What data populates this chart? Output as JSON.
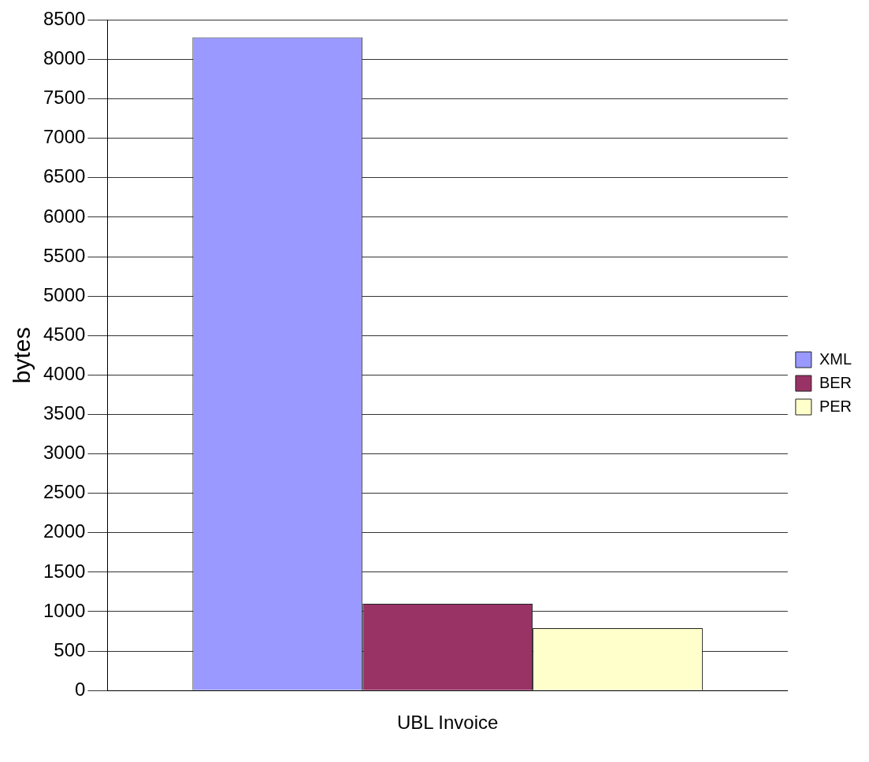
{
  "chart_data": {
    "type": "bar",
    "ylabel": "bytes",
    "categories": [
      "UBL Invoice"
    ],
    "series": [
      {
        "name": "XML",
        "color": "#9999ff",
        "values": [
          8280
        ]
      },
      {
        "name": "BER",
        "color": "#993366",
        "values": [
          1100
        ]
      },
      {
        "name": "PER",
        "color": "#ffffcc",
        "values": [
          790
        ]
      }
    ],
    "ylim": [
      0,
      8500
    ],
    "yticks": [
      0,
      500,
      1000,
      1500,
      2000,
      2500,
      3000,
      3500,
      4000,
      4500,
      5000,
      5500,
      6000,
      6500,
      7000,
      7500,
      8000,
      8500
    ],
    "grid": "y",
    "legend": "right"
  }
}
